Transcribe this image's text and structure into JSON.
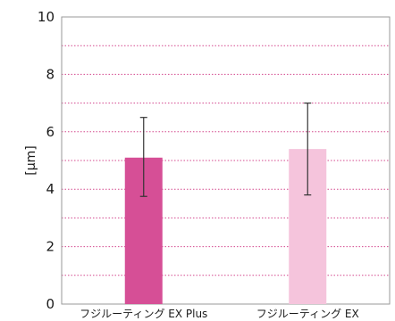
{
  "chart_data": {
    "type": "bar",
    "title": "",
    "xlabel": "",
    "ylabel": "[μm]",
    "ylim": [
      0,
      10
    ],
    "yticks": [
      "0",
      "2",
      "4",
      "6",
      "8",
      "10"
    ],
    "grid": true,
    "categories": [
      "フジルーティング EX Plus",
      "フジルーティング EX"
    ],
    "values": [
      5.1,
      5.4
    ],
    "error_low": [
      3.75,
      3.8
    ],
    "error_high": [
      6.5,
      7.0
    ],
    "colors": [
      "#d64f96",
      "#f5c4dc"
    ],
    "grid_color": "#d4488e",
    "frame_color": "#999999"
  }
}
